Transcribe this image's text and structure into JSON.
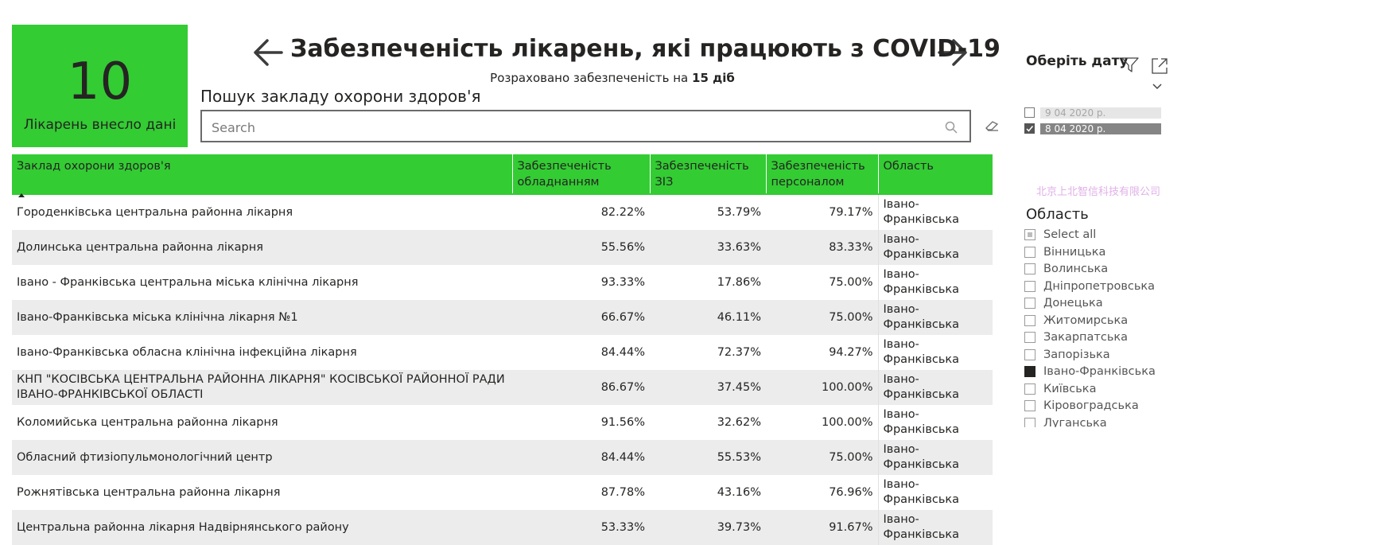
{
  "kpi": {
    "value": "10",
    "label": "Лікарень внесло дані"
  },
  "header": {
    "title": "Забезпеченість лікарень, які працюють з COVID-19",
    "subtitle_prefix": "Розраховано забезпеченість на",
    "subtitle_bold": "15 діб"
  },
  "search": {
    "label": "Пошук закладу охорони здоров'я",
    "placeholder": "Search"
  },
  "table": {
    "headers": [
      "Заклад охорони здоров'я",
      "Забезпеченість обладнанням",
      "Забезпеченість ЗІЗ",
      "Забезпеченість персоналом",
      "Область"
    ],
    "rows": [
      [
        "Городенківська центральна районна лікарня",
        "82.22%",
        "53.79%",
        "79.17%",
        "Івано-Франківська"
      ],
      [
        "Долинська центральна районна лікарня",
        "55.56%",
        "33.63%",
        "83.33%",
        "Івано-Франківська"
      ],
      [
        "Івано - Франківська центральна міська клінічна лікарня",
        "93.33%",
        "17.86%",
        "75.00%",
        "Івано-Франківська"
      ],
      [
        "Івано-Франківська міська клінічна лікарня №1",
        "66.67%",
        "46.11%",
        "75.00%",
        "Івано-Франківська"
      ],
      [
        "Івано-Франківська обласна клінічна інфекційна лікарня",
        "84.44%",
        "72.37%",
        "94.27%",
        "Івано-Франківська"
      ],
      [
        "КНП \"КОСІВСЬКА ЦЕНТРАЛЬНА РАЙОННА ЛІКАРНЯ\" КОСІВСЬКОЇ РАЙОННОЇ РАДИ ІВАНО-ФРАНКІВСЬКОЇ ОБЛАСТІ",
        "86.67%",
        "37.45%",
        "100.00%",
        "Івано-Франківська"
      ],
      [
        "Коломийська центральна районна лікарня",
        "91.56%",
        "32.62%",
        "100.00%",
        "Івано-Франківська"
      ],
      [
        "Обласний фтизіопульмонологічний центр",
        "84.44%",
        "55.53%",
        "75.00%",
        "Івано-Франківська"
      ],
      [
        "Рожнятівська центральна районна лікарня",
        "87.78%",
        "43.16%",
        "76.96%",
        "Івано-Франківська"
      ],
      [
        "Центральна районна лікарня Надвірнянського району",
        "53.33%",
        "39.73%",
        "91.67%",
        "Івано-Франківська"
      ]
    ]
  },
  "date_filter": {
    "title": "Оберіть дату",
    "items": [
      {
        "label": "9 04 2020 р.",
        "checked": false
      },
      {
        "label": "8 04 2020 р.",
        "checked": true
      }
    ]
  },
  "watermark": "北京上北智信科技有限公司",
  "region_filter": {
    "title": "Область",
    "items": [
      {
        "label": "Select all",
        "state": "partial"
      },
      {
        "label": "Вінницька",
        "state": "unchecked"
      },
      {
        "label": "Волинська",
        "state": "unchecked"
      },
      {
        "label": "Дніпропетровська",
        "state": "unchecked"
      },
      {
        "label": "Донецька",
        "state": "unchecked"
      },
      {
        "label": "Житомирська",
        "state": "unchecked"
      },
      {
        "label": "Закарпатська",
        "state": "unchecked"
      },
      {
        "label": "Запорізька",
        "state": "unchecked"
      },
      {
        "label": "Івано-Франківська",
        "state": "checked"
      },
      {
        "label": "Київська",
        "state": "unchecked"
      },
      {
        "label": "Кіровоградська",
        "state": "unchecked"
      },
      {
        "label": "Луганська",
        "state": "unchecked"
      }
    ]
  },
  "colors": {
    "accent": "#33cc33",
    "row_alt": "#ececec",
    "text": "#252423"
  }
}
